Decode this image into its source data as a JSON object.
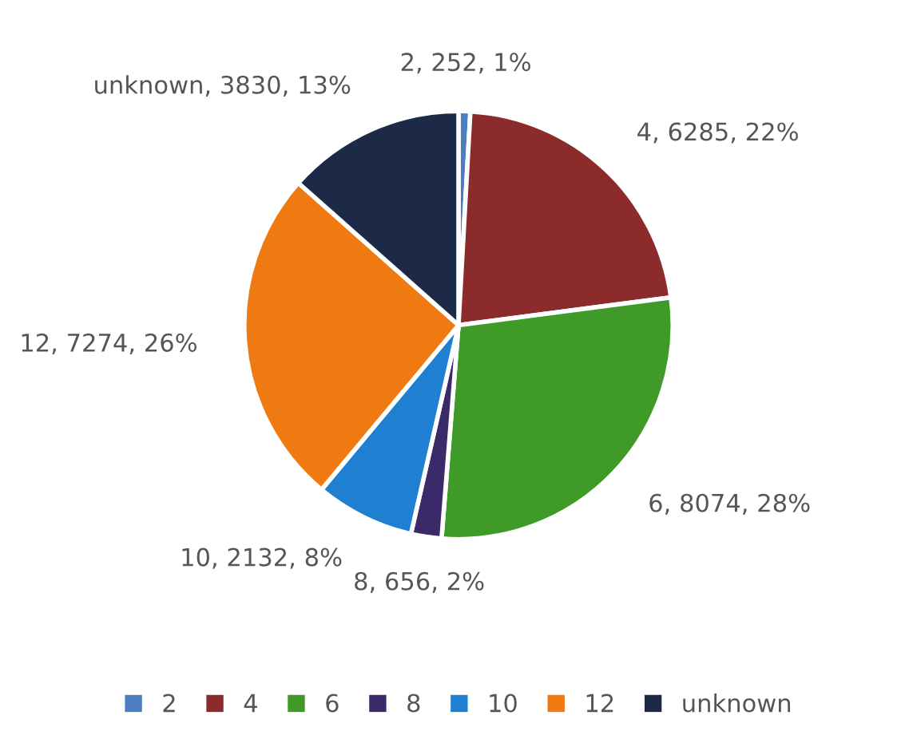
{
  "chart_data": {
    "type": "pie",
    "categories": [
      "2",
      "4",
      "6",
      "8",
      "10",
      "12",
      "unknown"
    ],
    "values": [
      252,
      6285,
      8074,
      656,
      2132,
      7274,
      3830
    ],
    "colors": [
      "#4a7ec0",
      "#8c2b2b",
      "#3f9a27",
      "#3a2a6a",
      "#1f7fd0",
      "#f07a12",
      "#1d2a47"
    ],
    "value_labels": [
      "2, 252, 1%",
      "4, 6285, 22%",
      "6, 8074, 28%",
      "8, 656, 2%",
      "10, 2132, 8%",
      "12, 7274, 26%",
      "unknown, 3830, 13%"
    ],
    "legend": "bottom"
  }
}
